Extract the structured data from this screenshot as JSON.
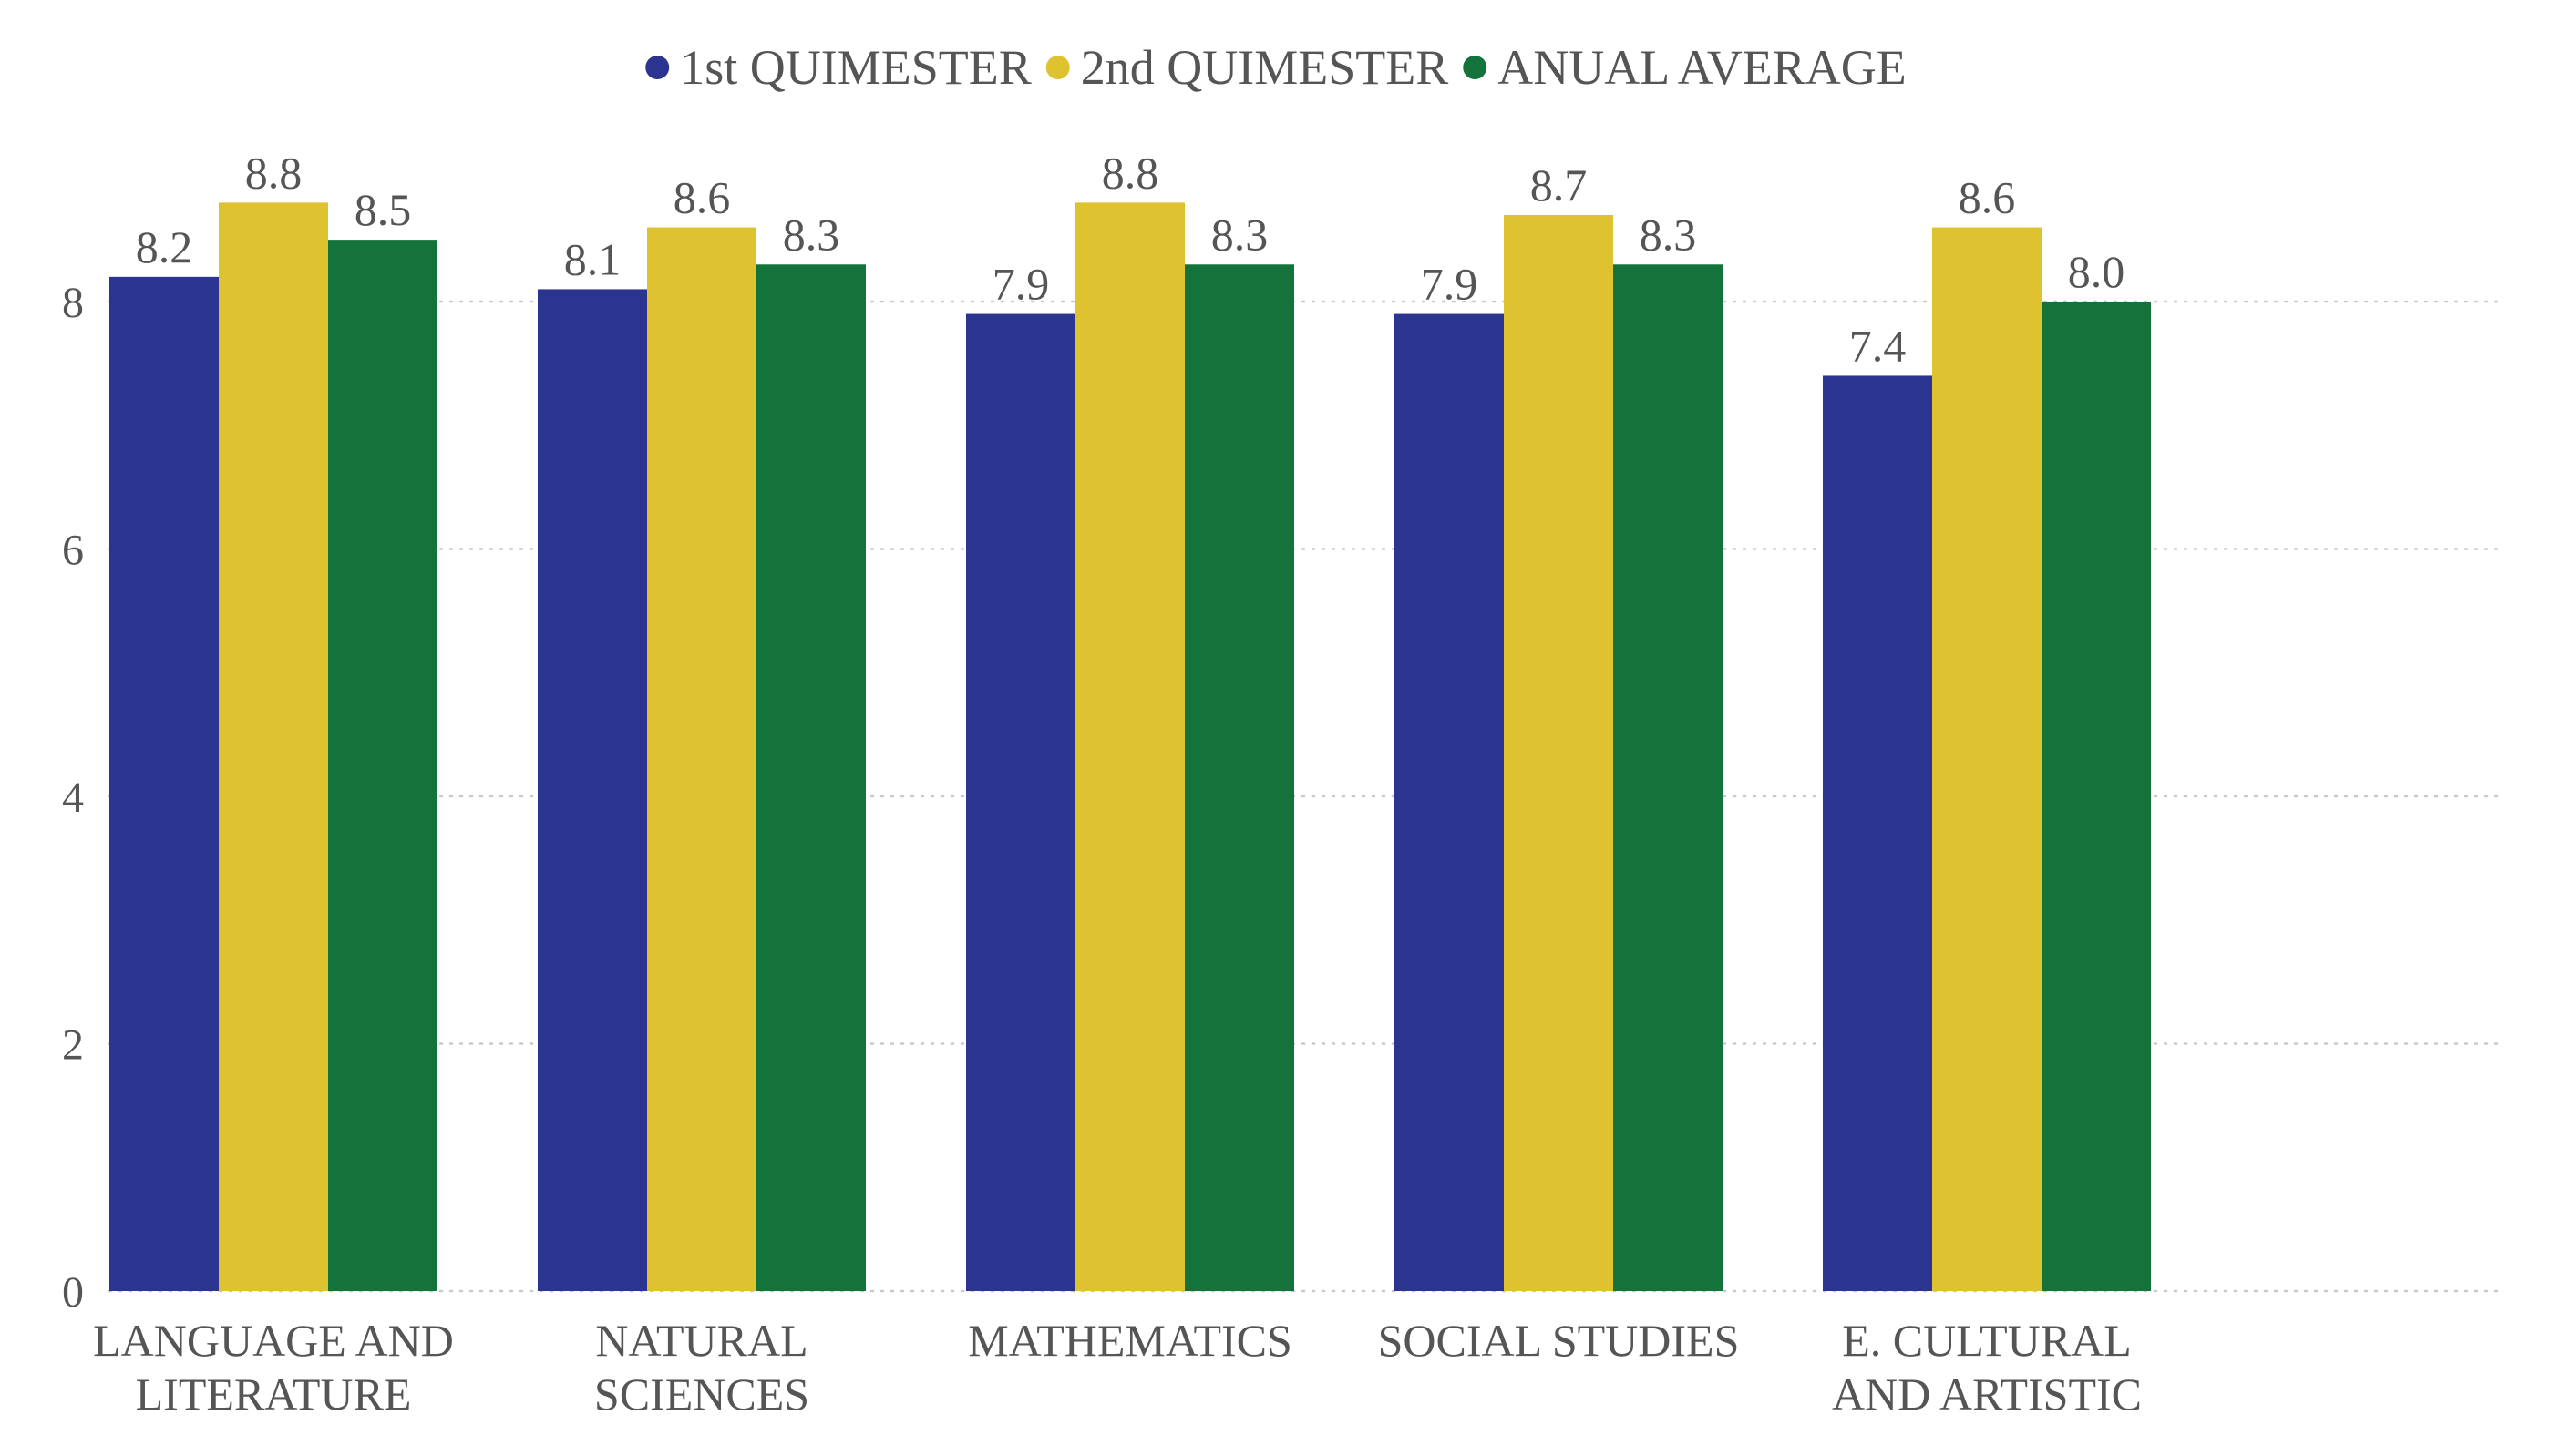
{
  "chart_data": {
    "type": "bar",
    "title": "",
    "xlabel": "",
    "ylabel": "",
    "categories": [
      [
        "LANGUAGE AND",
        "LITERATURE"
      ],
      [
        "NATURAL",
        "SCIENCES"
      ],
      [
        "MATHEMATICS"
      ],
      [
        "SOCIAL STUDIES"
      ],
      [
        "E. CULTURAL",
        "AND ARTISTIC"
      ]
    ],
    "series": [
      {
        "name": "1st QUIMESTER",
        "color": "#2b3590",
        "values": [
          8.2,
          8.1,
          7.9,
          7.9,
          7.4
        ],
        "labels": [
          "8.2",
          "8.1",
          "7.9",
          "7.9",
          "7.4"
        ]
      },
      {
        "name": "2nd QUIMESTER",
        "color": "#dfc22f",
        "values": [
          8.8,
          8.6,
          8.8,
          8.7,
          8.6
        ],
        "labels": [
          "8.8",
          "8.6",
          "8.8",
          "8.7",
          "8.6"
        ]
      },
      {
        "name": "ANUAL AVERAGE",
        "color": "#13733a",
        "values": [
          8.5,
          8.3,
          8.3,
          8.3,
          8.0
        ],
        "labels": [
          "8.5",
          "8.3",
          "8.3",
          "8.3",
          "8.0"
        ]
      }
    ],
    "ylim": [
      0,
      9
    ],
    "yticks": [
      0,
      2,
      4,
      6,
      8
    ],
    "ytick_labels": [
      "0",
      "2",
      "4",
      "6",
      "8"
    ],
    "grid": true,
    "legend_position": "top-center"
  }
}
